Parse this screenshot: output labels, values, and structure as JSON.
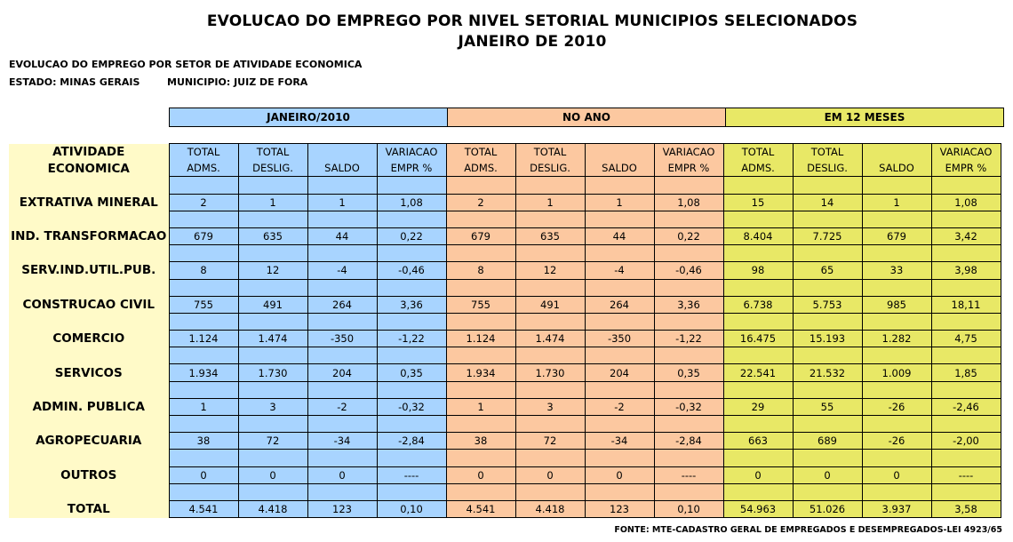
{
  "title_line1": "EVOLUCAO DO EMPREGO  POR NIVEL SETORIAL MUNICIPIOS SELECIONADOS",
  "title_line2": "JANEIRO DE 2010",
  "subtitle": "EVOLUCAO DO EMPREGO POR SETOR DE ATIVIDADE ECONOMICA",
  "estado": "ESTADO: MINAS GERAIS",
  "municipio": "MUNICIPIO: JUIZ DE FORA",
  "groups": [
    "JANEIRO/2010",
    "NO ANO",
    "EM 12 MESES"
  ],
  "activity_header": [
    "ATIVIDADE",
    "ECONOMICA"
  ],
  "col_header_top": [
    "TOTAL",
    "TOTAL",
    "",
    "VARIACAO"
  ],
  "col_header_bottom": [
    "ADMS.",
    "DESLIG.",
    "SALDO",
    "EMPR %"
  ],
  "colors": {
    "blue": "#a8d4ff",
    "orange": "#fcc8a0",
    "yellow": "#e8e866",
    "activity_bg": "#fffac8"
  },
  "rows": [
    {
      "name": "EXTRATIVA MINERAL",
      "values": [
        "2",
        "1",
        "1",
        "1,08",
        "2",
        "1",
        "1",
        "1,08",
        "15",
        "14",
        "1",
        "1,08"
      ]
    },
    {
      "name": "IND. TRANSFORMACAO",
      "values": [
        "679",
        "635",
        "44",
        "0,22",
        "679",
        "635",
        "44",
        "0,22",
        "8.404",
        "7.725",
        "679",
        "3,42"
      ]
    },
    {
      "name": "SERV.IND.UTIL.PUB.",
      "values": [
        "8",
        "12",
        "-4",
        "-0,46",
        "8",
        "12",
        "-4",
        "-0,46",
        "98",
        "65",
        "33",
        "3,98"
      ]
    },
    {
      "name": "CONSTRUCAO CIVIL",
      "values": [
        "755",
        "491",
        "264",
        "3,36",
        "755",
        "491",
        "264",
        "3,36",
        "6.738",
        "5.753",
        "985",
        "18,11"
      ]
    },
    {
      "name": "COMERCIO",
      "values": [
        "1.124",
        "1.474",
        "-350",
        "-1,22",
        "1.124",
        "1.474",
        "-350",
        "-1,22",
        "16.475",
        "15.193",
        "1.282",
        "4,75"
      ]
    },
    {
      "name": "SERVICOS",
      "values": [
        "1.934",
        "1.730",
        "204",
        "0,35",
        "1.934",
        "1.730",
        "204",
        "0,35",
        "22.541",
        "21.532",
        "1.009",
        "1,85"
      ]
    },
    {
      "name": "ADMIN. PUBLICA",
      "values": [
        "1",
        "3",
        "-2",
        "-0,32",
        "1",
        "3",
        "-2",
        "-0,32",
        "29",
        "55",
        "-26",
        "-2,46"
      ]
    },
    {
      "name": "AGROPECUARIA",
      "values": [
        "38",
        "72",
        "-34",
        "-2,84",
        "38",
        "72",
        "-34",
        "-2,84",
        "663",
        "689",
        "-26",
        "-2,00"
      ]
    },
    {
      "name": "OUTROS",
      "values": [
        "0",
        "0",
        "0",
        "----",
        "0",
        "0",
        "0",
        "----",
        "0",
        "0",
        "0",
        "----"
      ]
    },
    {
      "name": "TOTAL",
      "values": [
        "4.541",
        "4.418",
        "123",
        "0,10",
        "4.541",
        "4.418",
        "123",
        "0,10",
        "54.963",
        "51.026",
        "3.937",
        "3,58"
      ]
    }
  ],
  "source": "FONTE: MTE-CADASTRO GERAL DE EMPREGADOS E DESEMPREGADOS-LEI 4923/65"
}
